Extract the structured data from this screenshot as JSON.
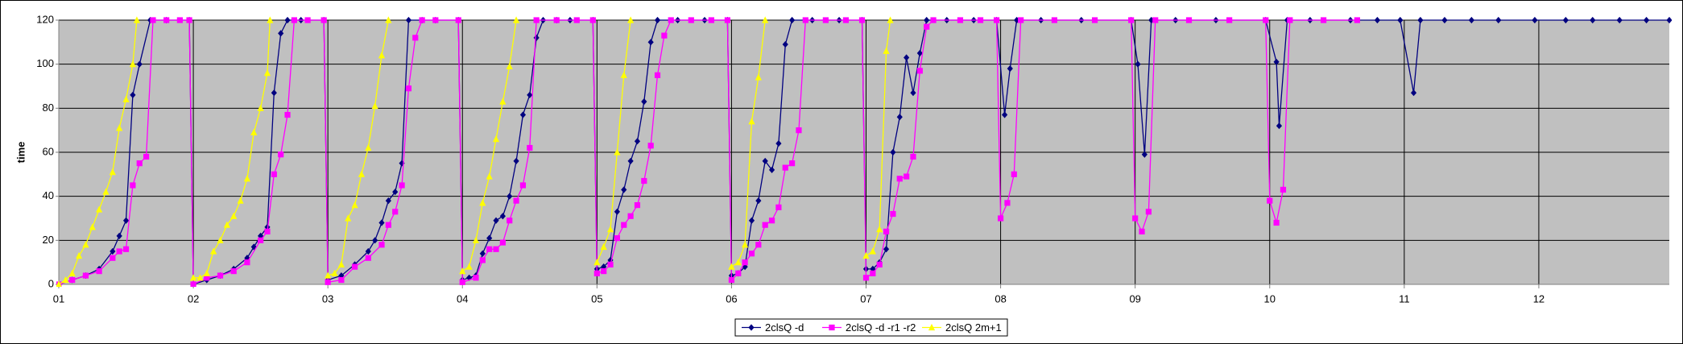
{
  "chart_data": {
    "type": "line",
    "ylabel": "time",
    "xlim": [
      1,
      12.97
    ],
    "xticks": [
      {
        "value": 1,
        "label": "01"
      },
      {
        "value": 2,
        "label": "02"
      },
      {
        "value": 3,
        "label": "03"
      },
      {
        "value": 4,
        "label": "04"
      },
      {
        "value": 5,
        "label": "05"
      },
      {
        "value": 6,
        "label": "06"
      },
      {
        "value": 7,
        "label": "07"
      },
      {
        "value": 8,
        "label": "08"
      },
      {
        "value": 9,
        "label": "09"
      },
      {
        "value": 10,
        "label": "10"
      },
      {
        "value": 11,
        "label": "11"
      },
      {
        "value": 12,
        "label": "12"
      }
    ],
    "ylim": [
      0,
      120
    ],
    "yticks": [
      0,
      20,
      40,
      60,
      80,
      100,
      120
    ],
    "grid": true,
    "legend": "bottom",
    "series": [
      {
        "name": "2clsQ -d",
        "color": "#000080",
        "marker": "diamond",
        "x": [
          1,
          1.1,
          1.2,
          1.3,
          1.4,
          1.45,
          1.5,
          1.55,
          1.6,
          1.68,
          1.8,
          1.97,
          2,
          2.1,
          2.2,
          2.3,
          2.4,
          2.45,
          2.5,
          2.55,
          2.6,
          2.65,
          2.7,
          2.8,
          2.97,
          3,
          3.1,
          3.2,
          3.3,
          3.35,
          3.4,
          3.45,
          3.5,
          3.55,
          3.6,
          3.7,
          3.8,
          3.97,
          4,
          4.05,
          4.1,
          4.15,
          4.2,
          4.25,
          4.3,
          4.35,
          4.4,
          4.45,
          4.5,
          4.55,
          4.6,
          4.7,
          4.8,
          4.97,
          5,
          5.05,
          5.1,
          5.15,
          5.2,
          5.25,
          5.3,
          5.35,
          5.4,
          5.45,
          5.6,
          5.8,
          5.97,
          6,
          6.05,
          6.1,
          6.15,
          6.2,
          6.25,
          6.3,
          6.35,
          6.4,
          6.45,
          6.6,
          6.8,
          6.97,
          7,
          7.05,
          7.1,
          7.15,
          7.2,
          7.25,
          7.3,
          7.35,
          7.4,
          7.45,
          7.6,
          7.8,
          7.97,
          8.03,
          8.07,
          8.12,
          8.3,
          8.6,
          8.97,
          9.02,
          9.07,
          9.12,
          9.3,
          9.6,
          9.97,
          10.05,
          10.07,
          10.13,
          10.3,
          10.6,
          10.8,
          10.97,
          11.07,
          11.12,
          11.3,
          11.5,
          11.7,
          11.97,
          12.2,
          12.4,
          12.6,
          12.8,
          12.97
        ],
        "values": [
          0,
          2,
          4,
          7,
          15,
          22,
          29,
          86,
          100,
          120,
          120,
          120,
          0,
          2,
          4,
          7,
          12,
          17,
          22,
          26,
          87,
          114,
          120,
          120,
          120,
          2,
          4,
          9,
          15,
          20,
          28,
          38,
          42,
          55,
          120,
          120,
          120,
          120,
          2,
          3,
          4,
          14,
          21,
          29,
          31,
          40,
          56,
          77,
          86,
          112,
          120,
          120,
          120,
          120,
          7,
          8,
          11,
          33,
          43,
          56,
          65,
          83,
          110,
          120,
          120,
          120,
          120,
          4,
          5,
          8,
          29,
          38,
          56,
          52,
          64,
          109,
          120,
          120,
          120,
          120,
          7,
          7,
          10,
          16,
          60,
          76,
          103,
          87,
          105,
          120,
          120,
          120,
          120,
          77,
          98,
          120,
          120,
          120,
          120,
          100,
          59,
          120,
          120,
          120,
          120,
          101,
          72,
          120,
          120,
          120,
          120,
          120,
          87,
          120,
          120,
          120,
          120,
          120,
          120,
          120,
          120,
          120,
          120
        ]
      },
      {
        "name": "2clsQ -d -r1 -r2",
        "color": "#ff00ff",
        "marker": "square",
        "x": [
          1,
          1.1,
          1.2,
          1.3,
          1.4,
          1.45,
          1.5,
          1.55,
          1.6,
          1.65,
          1.7,
          1.8,
          1.9,
          1.97,
          2,
          2.1,
          2.2,
          2.3,
          2.4,
          2.5,
          2.55,
          2.6,
          2.65,
          2.7,
          2.75,
          2.85,
          2.97,
          3,
          3.1,
          3.2,
          3.3,
          3.4,
          3.45,
          3.5,
          3.55,
          3.6,
          3.65,
          3.7,
          3.8,
          3.97,
          4,
          4.1,
          4.15,
          4.2,
          4.25,
          4.3,
          4.35,
          4.4,
          4.45,
          4.5,
          4.55,
          4.7,
          4.85,
          4.97,
          5,
          5.05,
          5.1,
          5.15,
          5.2,
          5.25,
          5.3,
          5.35,
          5.4,
          5.45,
          5.5,
          5.55,
          5.7,
          5.85,
          5.97,
          6,
          6.05,
          6.1,
          6.15,
          6.2,
          6.25,
          6.3,
          6.35,
          6.4,
          6.45,
          6.5,
          6.55,
          6.7,
          6.85,
          6.97,
          7,
          7.05,
          7.1,
          7.15,
          7.2,
          7.25,
          7.3,
          7.35,
          7.4,
          7.45,
          7.5,
          7.7,
          7.85,
          7.97,
          8,
          8.05,
          8.1,
          8.15,
          8.4,
          8.7,
          8.97,
          9,
          9.05,
          9.1,
          9.15,
          9.4,
          9.7,
          9.97,
          10,
          10.05,
          10.1,
          10.15,
          10.4,
          10.65
        ],
        "values": [
          0,
          2,
          4,
          6,
          12,
          15,
          16,
          45,
          55,
          58,
          120,
          120,
          120,
          120,
          0,
          3,
          4,
          6,
          10,
          20,
          24,
          50,
          59,
          77,
          120,
          120,
          120,
          1,
          2,
          8,
          12,
          18,
          27,
          33,
          45,
          89,
          112,
          120,
          120,
          120,
          1,
          3,
          11,
          16,
          16,
          19,
          29,
          38,
          45,
          62,
          120,
          120,
          120,
          120,
          5,
          6,
          9,
          21,
          27,
          31,
          36,
          47,
          63,
          95,
          113,
          120,
          120,
          120,
          120,
          2,
          5,
          10,
          14,
          18,
          27,
          29,
          35,
          53,
          55,
          70,
          120,
          120,
          120,
          120,
          3,
          5,
          9,
          24,
          32,
          48,
          49,
          58,
          97,
          117,
          120,
          120,
          120,
          120,
          30,
          37,
          50,
          120,
          120,
          120,
          120,
          30,
          24,
          33,
          120,
          120,
          120,
          120,
          38,
          28,
          43,
          120,
          120,
          120
        ]
      },
      {
        "name": "2clsQ 2m+1",
        "color": "#ffff00",
        "marker": "triangle",
        "x": [
          1,
          1.05,
          1.1,
          1.15,
          1.2,
          1.25,
          1.3,
          1.35,
          1.4,
          1.45,
          1.5,
          1.55,
          1.58,
          1.8,
          2,
          2.05,
          2.1,
          2.15,
          2.2,
          2.25,
          2.3,
          2.35,
          2.4,
          2.45,
          2.5,
          2.55,
          2.57,
          2.8,
          3,
          3.05,
          3.1,
          3.15,
          3.2,
          3.25,
          3.3,
          3.35,
          3.4,
          3.45,
          3.8,
          4,
          4.05,
          4.1,
          4.15,
          4.2,
          4.25,
          4.3,
          4.35,
          4.4,
          4.8,
          5,
          5.05,
          5.1,
          5.15,
          5.2,
          5.25,
          5.8,
          6,
          6.05,
          6.1,
          6.15,
          6.2,
          6.25,
          6.8,
          7,
          7.05,
          7.1,
          7.15,
          7.18
        ],
        "values": [
          0,
          2,
          5,
          13,
          18,
          26,
          34,
          42,
          51,
          71,
          84,
          100,
          120,
          null,
          3,
          3,
          5,
          15,
          20,
          27,
          31,
          38,
          48,
          69,
          80,
          96,
          120,
          null,
          4,
          5,
          9,
          30,
          36,
          50,
          62,
          81,
          104,
          120,
          null,
          6,
          8,
          20,
          37,
          49,
          66,
          83,
          99,
          120,
          null,
          10,
          17,
          25,
          60,
          95,
          120,
          null,
          8,
          10,
          18,
          74,
          94,
          120,
          null,
          13,
          15,
          25,
          106,
          120
        ]
      }
    ]
  }
}
